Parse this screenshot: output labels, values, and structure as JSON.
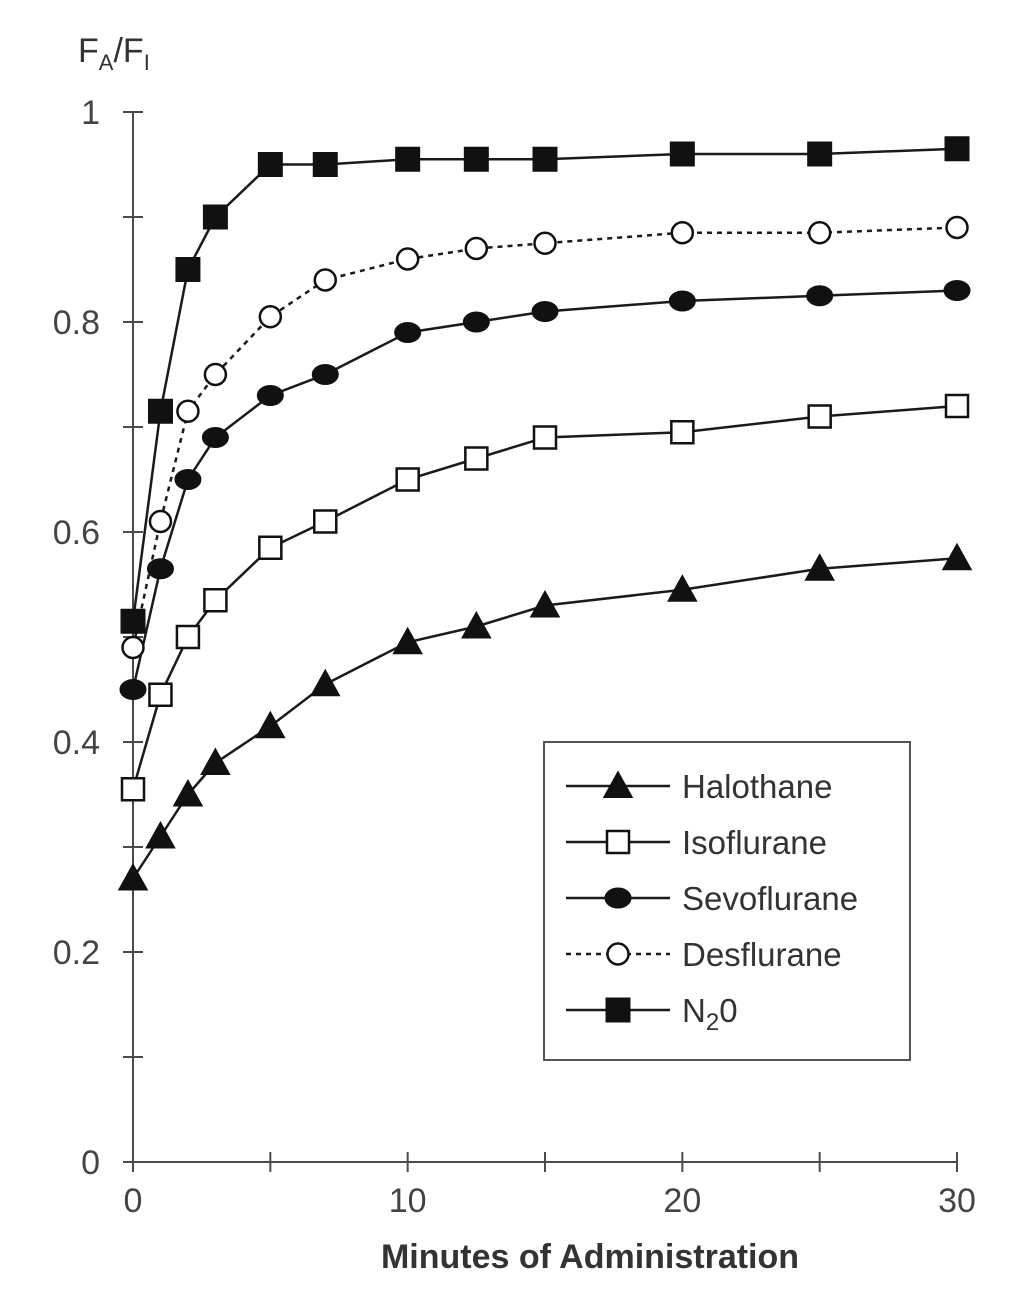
{
  "chart_data": {
    "type": "line",
    "ylabel": {
      "main": "F",
      "sub1": "A",
      "sep": "/F",
      "sub2": "I"
    },
    "xlabel": "Minutes of Administration",
    "xlim": [
      0,
      30
    ],
    "ylim": [
      0,
      1
    ],
    "x_ticks": [
      0,
      5,
      10,
      15,
      20,
      25,
      30
    ],
    "x_tick_labels": [
      "0",
      "10",
      "20",
      "30"
    ],
    "x_tick_label_values": [
      0,
      10,
      20,
      30
    ],
    "y_ticks": [
      0,
      0.1,
      0.2,
      0.3,
      0.4,
      0.5,
      0.6,
      0.7,
      0.8,
      0.9,
      1.0
    ],
    "y_tick_labels": [
      "0",
      "0.2",
      "0.4",
      "0.6",
      "0.8",
      "1"
    ],
    "y_tick_label_values": [
      0,
      0.2,
      0.4,
      0.6,
      0.8,
      1.0
    ],
    "legend_position": "bottom-right",
    "series": [
      {
        "name": "Halothane",
        "marker": "triangle-filled",
        "dash": "solid",
        "x": [
          0,
          1,
          2,
          3,
          5,
          7,
          10,
          12.5,
          15,
          20,
          25,
          30
        ],
        "y": [
          0.27,
          0.31,
          0.35,
          0.38,
          0.415,
          0.455,
          0.495,
          0.51,
          0.53,
          0.545,
          0.565,
          0.575
        ]
      },
      {
        "name": "Isoflurane",
        "marker": "square-open",
        "dash": "solid",
        "x": [
          0,
          1,
          2,
          3,
          5,
          7,
          10,
          12.5,
          15,
          20,
          25,
          30
        ],
        "y": [
          0.355,
          0.445,
          0.5,
          0.535,
          0.585,
          0.61,
          0.65,
          0.67,
          0.69,
          0.695,
          0.71,
          0.72
        ]
      },
      {
        "name": "Sevoflurane",
        "marker": "circle-filled",
        "dash": "solid",
        "x": [
          0,
          1,
          2,
          3,
          5,
          7,
          10,
          12.5,
          15,
          20,
          25,
          30
        ],
        "y": [
          0.45,
          0.565,
          0.65,
          0.69,
          0.73,
          0.75,
          0.79,
          0.8,
          0.81,
          0.82,
          0.825,
          0.83
        ]
      },
      {
        "name": "Desflurane",
        "marker": "circle-open",
        "dash": "dotted",
        "x": [
          0,
          1,
          2,
          3,
          5,
          7,
          10,
          12.5,
          15,
          20,
          25,
          30
        ],
        "y": [
          0.49,
          0.61,
          0.715,
          0.75,
          0.805,
          0.84,
          0.86,
          0.87,
          0.875,
          0.885,
          0.885,
          0.89
        ]
      },
      {
        "name_parts": {
          "base": "N",
          "sub": "2",
          "tail": "0"
        },
        "marker": "square-filled",
        "dash": "solid",
        "x": [
          0,
          1,
          2,
          3,
          5,
          7,
          10,
          12.5,
          15,
          20,
          25,
          30
        ],
        "y": [
          0.515,
          0.715,
          0.85,
          0.9,
          0.95,
          0.95,
          0.955,
          0.955,
          0.955,
          0.96,
          0.96,
          0.965
        ]
      }
    ]
  }
}
